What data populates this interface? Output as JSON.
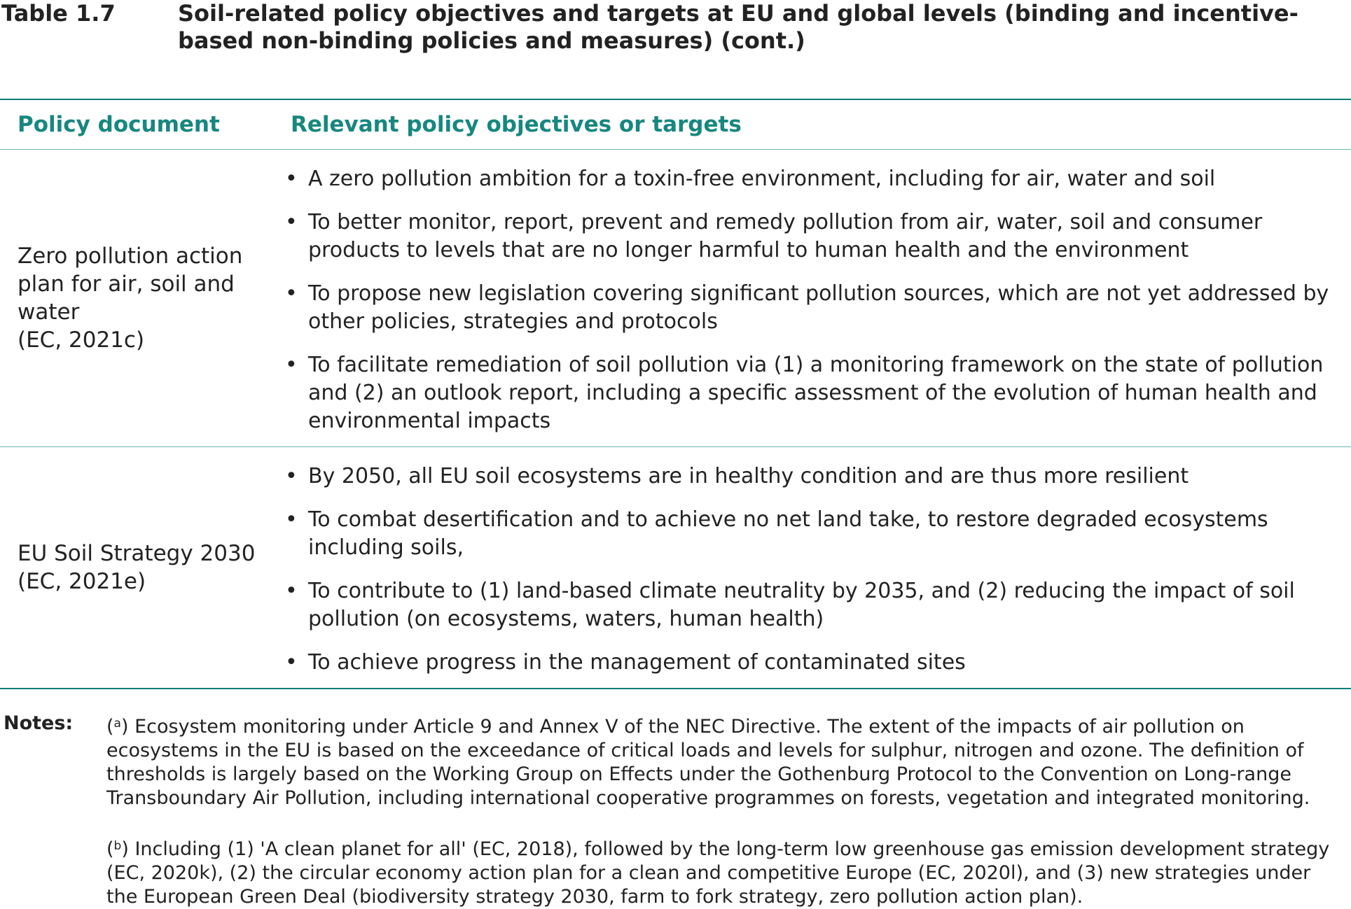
{
  "caption": {
    "label": "Table 1.7",
    "title": "Soil-related policy objectives and targets at EU and global levels (binding and incentive-based non-binding policies and measures) (cont.)"
  },
  "table": {
    "header": {
      "col1": "Policy document",
      "col2": "Relevant policy objectives or targets"
    },
    "rows": [
      {
        "document": "Zero pollution action plan for air, soil and water\n(EC, 2021c)",
        "objectives": [
          "A zero pollution ambition for a toxin-free environment, including for air, water and soil",
          "To better monitor, report, prevent and remedy pollution from air, water, soil and consumer products to levels that are no longer harmful to human health and the environment",
          "To propose new legislation covering significant pollution sources, which are not yet addressed by other policies, strategies and protocols",
          "To facilitate remediation of soil pollution via (1) a monitoring framework on the state of pollution and (2) an outlook report, including a specific assessment of the evolution of human health and environmental impacts"
        ]
      },
      {
        "document": "EU Soil Strategy 2030\n(EC, 2021e)",
        "objectives": [
          "By 2050, all EU soil ecosystems are in healthy condition and are thus more resilient",
          "To combat desertification and to achieve no net land take, to restore degraded ecosystems including soils,",
          "To contribute to (1) land-based climate neutrality by 2035, and (2) reducing the impact of soil pollution (on ecosystems, waters, human health)",
          "To achieve progress in the management of contaminated sites"
        ]
      }
    ],
    "bullet": "•"
  },
  "notes": {
    "label": "Notes:",
    "items": [
      {
        "mark": "a",
        "text": "Ecosystem monitoring under Article 9 and Annex V of the NEC Directive. The extent of the impacts of air pollution on ecosystems in the EU is based on the exceedance of critical loads and levels for sulphur, nitrogen and ozone. The definition of thresholds is largely based on the Working Group on Effects under the Gothenburg Protocol to the Convention on Long-range Transboundary Air Pollution, including international cooperative programmes on forests, vegetation and integrated monitoring."
      },
      {
        "mark": "b",
        "text": "Including (1) 'A clean planet for all' (EC, 2018), followed by the long-term low greenhouse gas emission development strategy (EC, 2020k), (2) the circular economy action plan for a clean and competitive Europe (EC, 2020l), and (3) new strategies under the European Green Deal (biodiversity strategy 2030, farm to fork strategy, zero pollution action plan)."
      }
    ]
  },
  "colors": {
    "accent": "#17877f",
    "rule": "#0e7f79",
    "text": "#222222"
  }
}
